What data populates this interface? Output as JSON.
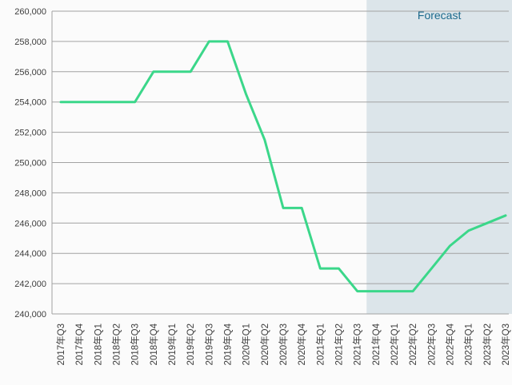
{
  "chart_data": {
    "type": "line",
    "title": "",
    "xlabel": "",
    "ylabel": "",
    "x": [
      "2017年Q3",
      "2017年Q4",
      "2018年Q1",
      "2018年Q2",
      "2018年Q3",
      "2018年Q4",
      "2019年Q1",
      "2019年Q2",
      "2019年Q3",
      "2019年Q4",
      "2020年Q1",
      "2020年Q2",
      "2020年Q3",
      "2020年Q4",
      "2021年Q1",
      "2021年Q2",
      "2021年Q3",
      "2021年Q4",
      "2022年Q1",
      "2022年Q2",
      "2022年Q3",
      "2022年Q4",
      "2023年Q1",
      "2023年Q2",
      "2023年Q3"
    ],
    "values": [
      254000,
      254000,
      254000,
      254000,
      254000,
      256000,
      256000,
      256000,
      258000,
      258000,
      254500,
      251500,
      247000,
      247000,
      243000,
      243000,
      241500,
      241500,
      241500,
      241500,
      243000,
      244500,
      245500,
      246000,
      246500
    ],
    "ylim": [
      240000,
      260000
    ],
    "ytick_step": 2000,
    "y_ticks": [
      240000,
      242000,
      244000,
      246000,
      248000,
      250000,
      252000,
      254000,
      256000,
      258000,
      260000
    ],
    "grid": true,
    "legend_position": "none",
    "forecast_start_index": 17,
    "forecast_label": "Forecast",
    "colors": {
      "line": "#3bd78a",
      "forecast_band": "#dce5ea",
      "forecast_text": "#1c6a8d",
      "grid": "#a2a2a2",
      "labels": "#3d3d3d",
      "background": "#fbfbfb"
    }
  }
}
